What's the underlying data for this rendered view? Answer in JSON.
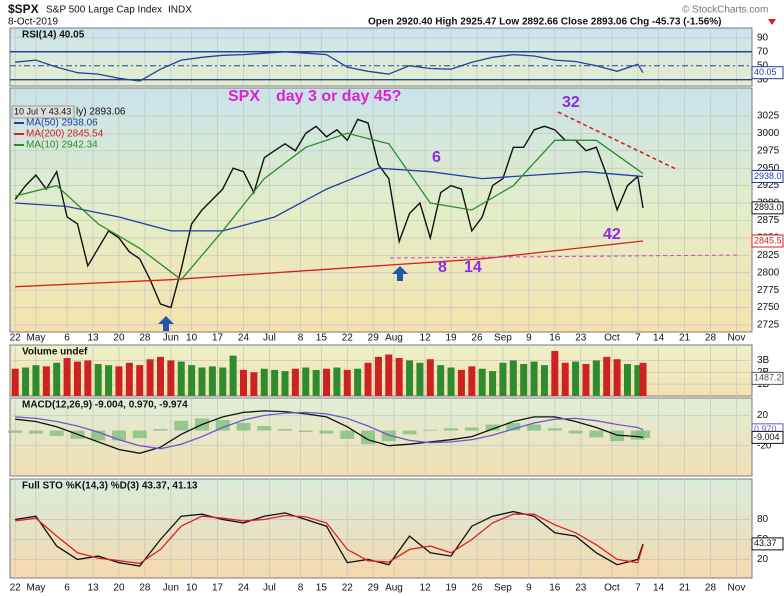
{
  "header": {
    "symbol": "$SPX",
    "name": "S&P 500 Large Cap Index",
    "exchange": "INDX",
    "date": "8-Oct-2019",
    "quote": "Open 2920.40  High 2925.47  Low 2892.66  Close 2893.06  Chg -45.73 (-1.56%)",
    "credit": "© StockCharts.com"
  },
  "chart_data": [
    {
      "type": "line",
      "title": "RSI(14) 40.05",
      "ylim": [
        21,
        104
      ],
      "yticks": [
        30,
        50,
        70,
        90
      ],
      "series": [
        {
          "color": "#2a3f9a",
          "x": [
            0,
            4,
            8,
            12,
            16,
            20,
            24,
            28,
            32,
            36,
            40,
            44,
            48,
            52,
            56,
            60,
            64,
            68,
            72,
            76,
            80,
            84,
            88,
            92,
            96,
            100,
            104,
            108,
            112,
            116,
            120,
            121
          ],
          "values": [
            55,
            58,
            48,
            40,
            38,
            32,
            28,
            45,
            58,
            62,
            65,
            66,
            68,
            70,
            68,
            66,
            48,
            42,
            38,
            50,
            46,
            45,
            55,
            62,
            66,
            64,
            58,
            56,
            50,
            42,
            52,
            40.05
          ]
        }
      ],
      "tags": [
        {
          "value": 40.05,
          "label": "40.05",
          "color": "#2a3f9a"
        }
      ]
    },
    {
      "type": "line",
      "ylim": [
        2715,
        3065
      ],
      "yticks": [
        2725,
        2750,
        2775,
        2800,
        2825,
        2850,
        2875,
        2900,
        2925,
        2950,
        2975,
        3000,
        3025
      ],
      "xlim": [
        -1,
        142
      ],
      "xticks": [
        {
          "value": 0,
          "label": "22"
        },
        {
          "value": 4,
          "label": "May"
        },
        {
          "value": 10,
          "label": "6"
        },
        {
          "value": 15,
          "label": "13"
        },
        {
          "value": 20,
          "label": "20"
        },
        {
          "value": 25,
          "label": "28"
        },
        {
          "value": 30,
          "label": "Jun"
        },
        {
          "value": 34,
          "label": "10"
        },
        {
          "value": 39,
          "label": "17"
        },
        {
          "value": 44,
          "label": "24"
        },
        {
          "value": 49,
          "label": "Jul"
        },
        {
          "value": 55,
          "label": "8"
        },
        {
          "value": 59,
          "label": "15"
        },
        {
          "value": 64,
          "label": "22"
        },
        {
          "value": 69,
          "label": "29"
        },
        {
          "value": 73,
          "label": "Aug"
        },
        {
          "value": 79,
          "label": "12"
        },
        {
          "value": 84,
          "label": "19"
        },
        {
          "value": 89,
          "label": "26"
        },
        {
          "value": 94,
          "label": "Sep"
        },
        {
          "value": 99,
          "label": "9"
        },
        {
          "value": 104,
          "label": "16"
        },
        {
          "value": 109,
          "label": "23"
        },
        {
          "value": 115,
          "label": "Oct"
        },
        {
          "value": 120,
          "label": "7"
        },
        {
          "value": 124,
          "label": "14"
        },
        {
          "value": 129,
          "label": "21"
        },
        {
          "value": 134,
          "label": "28"
        },
        {
          "value": 139,
          "label": "Nov"
        }
      ],
      "tooltip": "10 Jul Y 43.43",
      "price_label": "ly) 2893.06",
      "series": [
        {
          "color": "#111111",
          "x": [
            0,
            2,
            4,
            6,
            8,
            10,
            12,
            14,
            16,
            18,
            20,
            22,
            24,
            26,
            28,
            30,
            32,
            34,
            36,
            38,
            40,
            42,
            44,
            46,
            48,
            50,
            52,
            54,
            56,
            58,
            60,
            62,
            64,
            66,
            68,
            70,
            72,
            74,
            76,
            78,
            80,
            82,
            84,
            86,
            88,
            90,
            92,
            94,
            96,
            98,
            100,
            102,
            104,
            106,
            108,
            110,
            112,
            114,
            116,
            118,
            120,
            121
          ],
          "values": [
            2905,
            2925,
            2940,
            2920,
            2945,
            2880,
            2870,
            2810,
            2835,
            2860,
            2850,
            2830,
            2820,
            2790,
            2755,
            2750,
            2805,
            2870,
            2890,
            2905,
            2920,
            2950,
            2945,
            2915,
            2965,
            2975,
            2985,
            2975,
            3000,
            3010,
            2995,
            3005,
            2990,
            3020,
            3015,
            2955,
            2935,
            2845,
            2885,
            2900,
            2850,
            2915,
            2925,
            2920,
            2860,
            2880,
            2925,
            2935,
            2980,
            2980,
            3005,
            3010,
            3005,
            2990,
            2990,
            2975,
            2980,
            2940,
            2890,
            2925,
            2938,
            2893
          ]
        },
        {
          "name": "MA(50) 2938.06",
          "color": "#1f3fa8",
          "x": [
            0,
            10,
            20,
            30,
            40,
            50,
            60,
            70,
            80,
            90,
            100,
            110,
            121
          ],
          "values": [
            2900,
            2895,
            2880,
            2860,
            2860,
            2880,
            2920,
            2950,
            2945,
            2935,
            2940,
            2945,
            2938.06
          ]
        },
        {
          "name": "MA(200) 2845.54",
          "color": "#d42020",
          "x": [
            0,
            30,
            60,
            90,
            121
          ],
          "values": [
            2780,
            2790,
            2805,
            2820,
            2845.54
          ]
        },
        {
          "name": "MA(10) 2942.34",
          "color": "#2e8b2e",
          "x": [
            0,
            8,
            16,
            24,
            32,
            40,
            48,
            56,
            64,
            72,
            80,
            88,
            96,
            104,
            112,
            121
          ],
          "values": [
            2910,
            2925,
            2870,
            2835,
            2790,
            2860,
            2935,
            2980,
            3000,
            2985,
            2900,
            2890,
            2925,
            2990,
            2990,
            2942.34
          ]
        }
      ],
      "tags": [
        {
          "value": 2938.06,
          "label": "2938.0",
          "color": "#1f3fa8"
        },
        {
          "value": 2893.06,
          "label": "2893.0",
          "color": "#111111"
        },
        {
          "value": 2845.54,
          "label": "2845.5",
          "color": "#d42020"
        }
      ],
      "annotations": {
        "spx": "SPX",
        "question": "day 3 or day 45?",
        "n32": "32",
        "n6": "6",
        "n8": "8",
        "n14": "14",
        "n42": "42"
      }
    },
    {
      "type": "bar",
      "title": "Volume undef",
      "ylim": [
        0,
        4.3
      ],
      "yticks": [
        {
          "value": 1,
          "label": "1B"
        },
        {
          "value": 2,
          "label": "2B"
        },
        {
          "value": 3,
          "label": "3B"
        }
      ],
      "up_color": "#2e8b2e",
      "down_color": "#cc2222",
      "x": [
        0,
        2,
        4,
        6,
        8,
        10,
        12,
        14,
        16,
        18,
        20,
        22,
        24,
        26,
        28,
        30,
        32,
        34,
        36,
        38,
        40,
        42,
        44,
        46,
        48,
        50,
        52,
        54,
        56,
        58,
        60,
        62,
        64,
        66,
        68,
        70,
        72,
        74,
        76,
        78,
        80,
        82,
        84,
        86,
        88,
        90,
        92,
        94,
        96,
        98,
        100,
        102,
        104,
        106,
        108,
        110,
        112,
        114,
        116,
        118,
        120,
        121
      ],
      "values": [
        2.3,
        2.4,
        2.6,
        2.5,
        2.8,
        3.2,
        2.9,
        3.0,
        2.7,
        2.6,
        2.5,
        2.8,
        2.6,
        3.1,
        3.3,
        3.0,
        2.9,
        2.6,
        2.4,
        2.5,
        2.4,
        3.4,
        2.2,
        2.0,
        2.3,
        2.2,
        2.1,
        2.3,
        2.4,
        2.2,
        2.3,
        2.4,
        2.2,
        2.3,
        2.8,
        3.3,
        3.5,
        3.2,
        3.0,
        2.8,
        3.1,
        2.6,
        2.4,
        2.2,
        2.5,
        2.3,
        2.1,
        2.8,
        3.0,
        2.7,
        2.9,
        2.6,
        3.8,
        2.8,
        2.9,
        2.7,
        3.0,
        3.3,
        3.1,
        2.7,
        2.6,
        2.8
      ],
      "tags": [
        {
          "value": 1.4872,
          "label": "1487.2",
          "color": "#555555"
        }
      ]
    },
    {
      "type": "line",
      "title": "MACD(12,26,9) -9.004, 0.970, -9.974",
      "ylim": [
        -60,
        43
      ],
      "yticks": [
        -20,
        20
      ],
      "series": [
        {
          "type": "bar",
          "color": "#7fbf7f",
          "x": [
            0,
            4,
            8,
            12,
            16,
            20,
            24,
            28,
            32,
            36,
            40,
            44,
            48,
            52,
            56,
            60,
            64,
            68,
            72,
            76,
            80,
            84,
            88,
            92,
            96,
            100,
            104,
            108,
            112,
            116,
            120,
            121
          ],
          "values": [
            -3,
            -4,
            -7,
            -11,
            -13,
            -13,
            -10,
            2,
            13,
            16,
            14,
            10,
            6,
            2,
            -2,
            -4,
            -11,
            -18,
            -14,
            -5,
            1,
            3,
            4,
            8,
            10,
            8,
            3,
            -4,
            -9,
            -14,
            -12,
            -9.974
          ]
        },
        {
          "color": "#111111",
          "x": [
            0,
            4,
            8,
            12,
            16,
            20,
            24,
            28,
            32,
            36,
            40,
            44,
            48,
            52,
            56,
            60,
            64,
            68,
            72,
            76,
            80,
            84,
            88,
            92,
            96,
            100,
            104,
            108,
            112,
            116,
            120,
            121
          ],
          "values": [
            15,
            12,
            5,
            -5,
            -15,
            -25,
            -30,
            -22,
            -5,
            8,
            18,
            24,
            26,
            25,
            22,
            18,
            5,
            -12,
            -20,
            -18,
            -15,
            -12,
            -8,
            2,
            12,
            18,
            18,
            12,
            4,
            -6,
            -8,
            -9.004
          ]
        },
        {
          "color": "#6a5acd",
          "x": [
            0,
            4,
            8,
            12,
            16,
            20,
            24,
            28,
            32,
            36,
            40,
            44,
            48,
            52,
            56,
            60,
            64,
            68,
            72,
            76,
            80,
            84,
            88,
            92,
            96,
            100,
            104,
            108,
            112,
            116,
            120,
            121
          ],
          "values": [
            18,
            16,
            12,
            6,
            -2,
            -12,
            -20,
            -24,
            -18,
            -8,
            4,
            14,
            20,
            23,
            24,
            22,
            16,
            6,
            -6,
            -13,
            -16,
            -15,
            -12,
            -6,
            2,
            10,
            15,
            16,
            13,
            8,
            4,
            0.97
          ]
        }
      ],
      "tags": [
        {
          "value": 0.97,
          "label": "0.970",
          "color": "#6a5acd"
        },
        {
          "value": -9.004,
          "label": "-9.004",
          "color": "#111111"
        }
      ]
    },
    {
      "type": "line",
      "title": "Full STO %K(14,3) %D(3) 43.37, 41.13",
      "ylim": [
        -8,
        141
      ],
      "yticks": [
        20,
        50,
        80
      ],
      "series": [
        {
          "color": "#111111",
          "x": [
            0,
            4,
            8,
            12,
            16,
            20,
            24,
            28,
            32,
            36,
            40,
            44,
            48,
            52,
            56,
            60,
            64,
            68,
            72,
            76,
            80,
            84,
            88,
            92,
            96,
            100,
            104,
            108,
            112,
            116,
            120,
            121
          ],
          "values": [
            80,
            85,
            40,
            20,
            25,
            15,
            10,
            50,
            85,
            88,
            80,
            75,
            85,
            90,
            80,
            70,
            15,
            20,
            12,
            55,
            30,
            25,
            70,
            85,
            92,
            85,
            60,
            55,
            30,
            12,
            20,
            43.37
          ]
        },
        {
          "color": "#e02020",
          "x": [
            0,
            4,
            8,
            12,
            16,
            20,
            24,
            28,
            32,
            36,
            40,
            44,
            48,
            52,
            56,
            60,
            64,
            68,
            72,
            76,
            80,
            84,
            88,
            92,
            96,
            100,
            104,
            108,
            112,
            116,
            120,
            121
          ],
          "values": [
            78,
            82,
            55,
            30,
            22,
            18,
            14,
            35,
            70,
            85,
            82,
            78,
            80,
            86,
            84,
            75,
            35,
            18,
            16,
            35,
            40,
            30,
            50,
            75,
            88,
            88,
            72,
            60,
            42,
            20,
            15,
            41.13
          ]
        }
      ],
      "tags": [
        {
          "value": 43.37,
          "label": "43.37",
          "color": "#111111"
        }
      ]
    }
  ]
}
